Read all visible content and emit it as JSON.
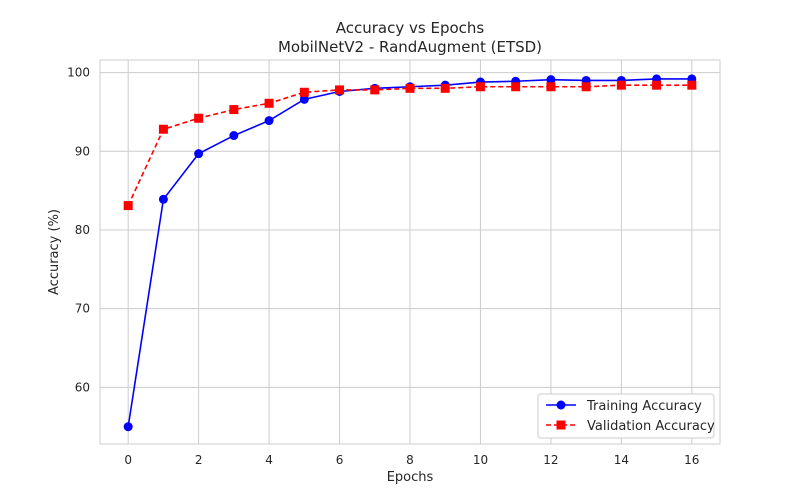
{
  "chart_data": {
    "type": "line",
    "title": "Accuracy vs Epochs",
    "subtitle": "MobilNetV2 - RandAugment (ETSD)",
    "xlabel": "Epochs",
    "ylabel": "Accuracy (%)",
    "xlim": [
      -0.8,
      16.8
    ],
    "ylim": [
      52.8,
      101.6
    ],
    "xticks": [
      0,
      2,
      4,
      6,
      8,
      10,
      12,
      14,
      16
    ],
    "yticks": [
      60,
      70,
      80,
      90,
      100
    ],
    "grid": true,
    "legend_position": "bottom-right",
    "x": [
      0,
      1,
      2,
      3,
      4,
      5,
      6,
      7,
      8,
      9,
      10,
      11,
      12,
      13,
      14,
      15,
      16
    ],
    "series": [
      {
        "name": "Training Accuracy",
        "color": "#0000ff",
        "line_style": "solid",
        "marker": "circle",
        "values": [
          55.0,
          83.9,
          89.7,
          92.0,
          93.9,
          96.6,
          97.6,
          98.0,
          98.2,
          98.4,
          98.8,
          98.9,
          99.1,
          99.0,
          99.0,
          99.2,
          99.2
        ]
      },
      {
        "name": "Validation Accuracy",
        "color": "#ff0000",
        "line_style": "dashed",
        "marker": "square",
        "values": [
          83.1,
          92.8,
          94.2,
          95.3,
          96.1,
          97.5,
          97.8,
          97.8,
          98.0,
          98.0,
          98.2,
          98.2,
          98.2,
          98.2,
          98.4,
          98.4,
          98.4
        ]
      }
    ]
  }
}
